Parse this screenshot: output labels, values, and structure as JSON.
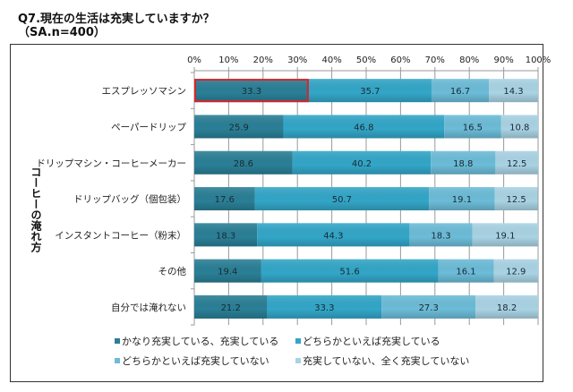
{
  "chart_data": {
    "type": "bar",
    "orientation": "horizontal",
    "stacked": "percent",
    "title": "Q7.現在の生活は充実していますか？",
    "subtitle": "（SA.n=400）",
    "ylabel": "コーヒーの淹れ方",
    "xlabel": "",
    "xlim": [
      0,
      100
    ],
    "x_ticks": [
      "0%",
      "10%",
      "20%",
      "30%",
      "40%",
      "50%",
      "60%",
      "70%",
      "80%",
      "90%",
      "100%"
    ],
    "grid": true,
    "legend_position": "bottom",
    "categories": [
      "エスプレッソマシン",
      "ペーパードリップ",
      "ドリップマシン・コーヒーメーカー",
      "ドリップバッグ（個包装）",
      "インスタントコーヒー（粉末）",
      "その他",
      "自分では淹れない"
    ],
    "series": [
      {
        "name": "かなり充実している、充実している",
        "color": "#2a7f96",
        "values": [
          33.3,
          25.9,
          28.6,
          17.6,
          18.3,
          19.4,
          21.2
        ]
      },
      {
        "name": "どちらかといえば充実している",
        "color": "#33a6c8",
        "values": [
          35.7,
          46.8,
          40.2,
          50.7,
          44.3,
          51.6,
          33.3
        ]
      },
      {
        "name": "どちらかといえば充実していない",
        "color": "#6cbcd8",
        "values": [
          16.7,
          16.5,
          18.8,
          19.1,
          18.3,
          16.1,
          27.3
        ]
      },
      {
        "name": "充実していない、全く充実していない",
        "color": "#a9d3e4",
        "values": [
          14.3,
          10.8,
          12.5,
          12.5,
          19.1,
          12.9,
          18.2
        ]
      }
    ],
    "highlight": {
      "category": "エスプレッソマシン",
      "series": "かなり充実している、充実している",
      "color": "#d9242a"
    }
  }
}
